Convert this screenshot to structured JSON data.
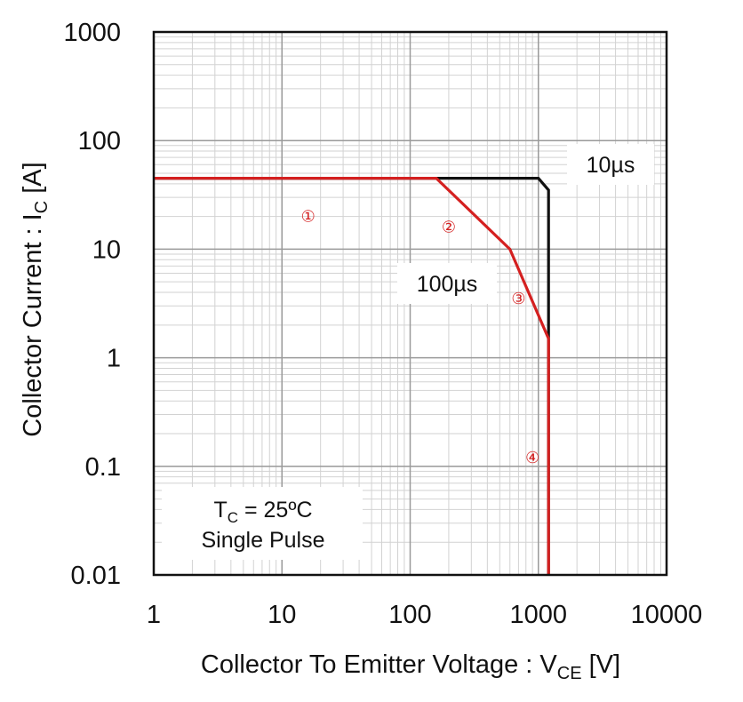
{
  "chart_data": {
    "type": "line",
    "title": "",
    "xscale": "log",
    "yscale": "log",
    "xlim": [
      1,
      10000
    ],
    "ylim": [
      0.01,
      1000
    ],
    "x_ticks": [
      "1",
      "10",
      "100",
      "1000",
      "10000"
    ],
    "y_ticks": [
      "0.01",
      "0.1",
      "1",
      "10",
      "100",
      "1000"
    ],
    "xlabel": {
      "main": "Collector To Emitter Voltage : V",
      "sub": "CE",
      "unit": " [V]"
    },
    "ylabel": {
      "main": "Collector Current : I",
      "sub": "C",
      "unit": " [A]"
    },
    "grid": true,
    "series": [
      {
        "name": "10µs",
        "color": "#111111",
        "x": [
          1,
          160,
          1000,
          1200,
          1200,
          1200
        ],
        "y": [
          45,
          45,
          45,
          35,
          1.5,
          0.01
        ]
      },
      {
        "name": "100µs",
        "color": "#d42020",
        "x": [
          1,
          160,
          600,
          1200,
          1200
        ],
        "y": [
          45,
          45,
          10,
          1.5,
          0.01
        ]
      }
    ],
    "annotations": {
      "label_10us": "10µs",
      "label_100us": "100µs",
      "conditions_tc": {
        "main": "T",
        "sub": "C",
        "rest": " = 25ºC"
      },
      "conditions_pulse": "Single Pulse"
    },
    "regions": [
      {
        "label": "①",
        "x": 16,
        "y": 20
      },
      {
        "label": "②",
        "x": 200,
        "y": 16
      },
      {
        "label": "③",
        "x": 700,
        "y": 3.5
      },
      {
        "label": "④",
        "x": 900,
        "y": 0.12
      }
    ]
  }
}
